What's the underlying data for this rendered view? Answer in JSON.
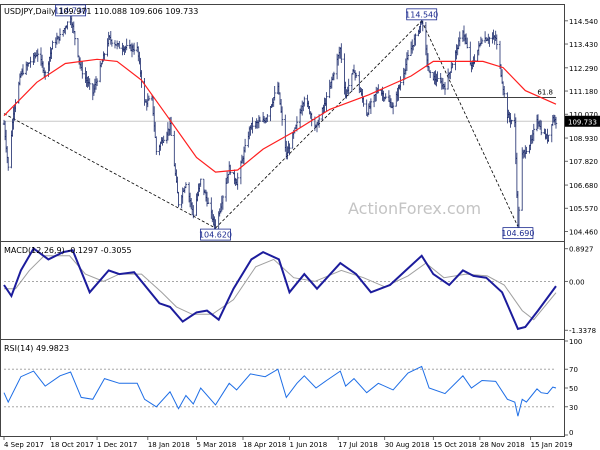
{
  "chart_data": [
    {
      "type": "line",
      "panel": "price",
      "title": "USDJPY,Daily",
      "ohlc_readout": [
        "109.971",
        "110.088",
        "109.606",
        "109.733"
      ],
      "ylim": [
        104.05,
        115.25
      ],
      "y_ticks": [
        "114.540",
        "113.430",
        "112.290",
        "111.180",
        "110.070",
        "108.930",
        "107.820",
        "106.680",
        "105.570",
        "104.460"
      ],
      "last_price_label": "109.733",
      "last_price": 109.733,
      "fib_label": "61.8",
      "fib_level": 110.87,
      "watermark": "ActionForex.com",
      "x_labels": [
        "4 Sep 2017",
        "18 Oct 2017",
        "1 Dec 2017",
        "18 Jan 2018",
        "5 Mar 2018",
        "18 Apr 2018",
        "1 Jun 2018",
        "17 Jul 2018",
        "30 Aug 2018",
        "15 Oct 2018",
        "28 Nov 2018",
        "15 Jan 2019"
      ],
      "price_anchors": [
        [
          "2017-09-04",
          109.6
        ],
        [
          "2017-09-08",
          107.5
        ],
        [
          "2017-09-13",
          110.2
        ],
        [
          "2017-09-20",
          112.0
        ],
        [
          "2017-09-29",
          112.6
        ],
        [
          "2017-10-06",
          113.0
        ],
        [
          "2017-10-13",
          112.0
        ],
        [
          "2017-10-20",
          113.4
        ],
        [
          "2017-10-27",
          113.8
        ],
        [
          "2017-11-06",
          114.73
        ],
        [
          "2017-11-16",
          112.2
        ],
        [
          "2017-11-27",
          111.1
        ],
        [
          "2017-12-06",
          112.6
        ],
        [
          "2017-12-12",
          113.7
        ],
        [
          "2017-12-22",
          113.3
        ],
        [
          "2018-01-08",
          113.2
        ],
        [
          "2018-01-15",
          110.6
        ],
        [
          "2018-01-22",
          110.8
        ],
        [
          "2018-01-26",
          108.3
        ],
        [
          "2018-02-08",
          109.5
        ],
        [
          "2018-02-16",
          105.8
        ],
        [
          "2018-02-23",
          106.8
        ],
        [
          "2018-03-02",
          105.3
        ],
        [
          "2018-03-09",
          106.9
        ],
        [
          "2018-03-23",
          104.62
        ],
        [
          "2018-04-05",
          107.5
        ],
        [
          "2018-04-12",
          106.8
        ],
        [
          "2018-04-25",
          109.5
        ],
        [
          "2018-05-09",
          109.8
        ],
        [
          "2018-05-21",
          111.4
        ],
        [
          "2018-05-29",
          108.1
        ],
        [
          "2018-06-08",
          109.6
        ],
        [
          "2018-06-15",
          110.9
        ],
        [
          "2018-06-26",
          109.4
        ],
        [
          "2018-07-06",
          110.8
        ],
        [
          "2018-07-19",
          113.2
        ],
        [
          "2018-07-24",
          111.0
        ],
        [
          "2018-08-01",
          112.2
        ],
        [
          "2018-08-13",
          110.1
        ],
        [
          "2018-08-24",
          111.3
        ],
        [
          "2018-09-07",
          110.4
        ],
        [
          "2018-09-21",
          112.8
        ],
        [
          "2018-10-04",
          114.54
        ],
        [
          "2018-10-11",
          112.0
        ],
        [
          "2018-10-26",
          111.4
        ],
        [
          "2018-11-12",
          114.1
        ],
        [
          "2018-11-20",
          112.3
        ],
        [
          "2018-11-30",
          113.7
        ],
        [
          "2018-12-13",
          113.7
        ],
        [
          "2018-12-24",
          110.0
        ],
        [
          "2018-12-31",
          109.6
        ],
        [
          "2019-01-03",
          104.69
        ],
        [
          "2019-01-07",
          108.1
        ],
        [
          "2019-01-11",
          108.4
        ],
        [
          "2019-01-16",
          108.8
        ],
        [
          "2019-01-21",
          109.9
        ],
        [
          "2019-01-25",
          109.3
        ],
        [
          "2019-01-31",
          108.9
        ],
        [
          "2019-02-05",
          109.9
        ],
        [
          "2019-02-08",
          109.73
        ]
      ],
      "series": [
        {
          "label": "moving average",
          "color": "#ff1f1f",
          "points": [
            [
              "2017-09-04",
              110.0
            ],
            [
              "2017-10-05",
              111.6
            ],
            [
              "2017-11-01",
              112.5
            ],
            [
              "2017-12-01",
              112.7
            ],
            [
              "2017-12-20",
              112.6
            ],
            [
              "2018-01-12",
              111.7
            ],
            [
              "2018-02-05",
              110.0
            ],
            [
              "2018-03-05",
              108.0
            ],
            [
              "2018-03-23",
              107.3
            ],
            [
              "2018-04-13",
              107.4
            ],
            [
              "2018-05-07",
              108.4
            ],
            [
              "2018-06-04",
              109.2
            ],
            [
              "2018-07-09",
              110.3
            ],
            [
              "2018-08-15",
              111.0
            ],
            [
              "2018-09-24",
              111.9
            ],
            [
              "2018-10-15",
              112.6
            ],
            [
              "2018-11-01",
              112.6
            ],
            [
              "2018-12-01",
              112.6
            ],
            [
              "2018-12-20",
              112.3
            ],
            [
              "2019-01-10",
              111.2
            ],
            [
              "2019-02-08",
              110.55
            ]
          ]
        }
      ],
      "annotations": [
        {
          "text": "114.730",
          "date": "2017-11-06",
          "value": 114.73,
          "position": "above"
        },
        {
          "text": "104.620",
          "date": "2018-03-23",
          "value": 104.62,
          "position": "below"
        },
        {
          "text": "114.540",
          "date": "2018-10-04",
          "value": 114.54,
          "position": "above"
        },
        {
          "text": "104.690",
          "date": "2019-01-03",
          "value": 104.69,
          "position": "below"
        }
      ],
      "trendlines": [
        {
          "style": "dashed",
          "points": [
            [
              "2017-09-04",
              110.1
            ],
            [
              "2018-03-23",
              104.62
            ]
          ]
        },
        {
          "style": "dashed",
          "points": [
            [
              "2018-03-23",
              104.62
            ],
            [
              "2018-10-04",
              114.54
            ]
          ]
        },
        {
          "style": "dashed",
          "points": [
            [
              "2018-10-04",
              114.54
            ],
            [
              "2019-01-03",
              104.69
            ]
          ]
        }
      ]
    },
    {
      "type": "line",
      "panel": "macd",
      "title": "MACD(12,26,9)",
      "readout": [
        "-0.1297",
        "-0.3055"
      ],
      "ylim": [
        -1.55,
        1.05
      ],
      "y_ticks": [
        "0.8927",
        "0.00",
        "-1.3378"
      ],
      "series": [
        {
          "label": "MACD",
          "color": "#1c1c9c",
          "points": [
            [
              "2017-09-04",
              -0.1
            ],
            [
              "2017-09-11",
              -0.4
            ],
            [
              "2017-09-20",
              0.3
            ],
            [
              "2017-10-02",
              0.9
            ],
            [
              "2017-10-16",
              0.6
            ],
            [
              "2017-10-30",
              0.8
            ],
            [
              "2017-11-08",
              0.85
            ],
            [
              "2017-11-24",
              -0.3
            ],
            [
              "2017-12-12",
              0.3
            ],
            [
              "2017-12-22",
              0.2
            ],
            [
              "2018-01-05",
              0.25
            ],
            [
              "2018-01-29",
              -0.6
            ],
            [
              "2018-02-08",
              -0.7
            ],
            [
              "2018-02-20",
              -1.1
            ],
            [
              "2018-03-05",
              -0.85
            ],
            [
              "2018-03-15",
              -0.8
            ],
            [
              "2018-03-26",
              -1.05
            ],
            [
              "2018-04-09",
              -0.2
            ],
            [
              "2018-04-26",
              0.6
            ],
            [
              "2018-05-07",
              0.8
            ],
            [
              "2018-05-22",
              0.6
            ],
            [
              "2018-06-01",
              -0.3
            ],
            [
              "2018-06-15",
              0.2
            ],
            [
              "2018-06-27",
              -0.2
            ],
            [
              "2018-07-19",
              0.5
            ],
            [
              "2018-08-03",
              0.2
            ],
            [
              "2018-08-17",
              -0.3
            ],
            [
              "2018-09-04",
              -0.1
            ],
            [
              "2018-09-19",
              0.3
            ],
            [
              "2018-10-04",
              0.7
            ],
            [
              "2018-10-15",
              0.2
            ],
            [
              "2018-10-30",
              -0.1
            ],
            [
              "2018-11-12",
              0.3
            ],
            [
              "2018-11-22",
              0.15
            ],
            [
              "2018-12-04",
              0.1
            ],
            [
              "2018-12-19",
              -0.3
            ],
            [
              "2019-01-03",
              -1.3
            ],
            [
              "2019-01-10",
              -1.25
            ],
            [
              "2019-01-22",
              -0.8
            ],
            [
              "2019-02-08",
              -0.13
            ]
          ]
        },
        {
          "label": "signal",
          "color": "#a0a0a0",
          "points": [
            [
              "2017-09-04",
              -0.2
            ],
            [
              "2017-09-15",
              -0.2
            ],
            [
              "2017-09-28",
              0.3
            ],
            [
              "2017-10-12",
              0.7
            ],
            [
              "2017-11-05",
              0.7
            ],
            [
              "2017-11-20",
              0.2
            ],
            [
              "2017-12-07",
              0.0
            ],
            [
              "2017-12-22",
              0.2
            ],
            [
              "2018-01-12",
              0.2
            ],
            [
              "2018-01-31",
              -0.3
            ],
            [
              "2018-02-14",
              -0.7
            ],
            [
              "2018-03-01",
              -0.9
            ],
            [
              "2018-03-20",
              -0.9
            ],
            [
              "2018-04-09",
              -0.5
            ],
            [
              "2018-04-30",
              0.4
            ],
            [
              "2018-05-17",
              0.6
            ],
            [
              "2018-06-05",
              0.1
            ],
            [
              "2018-06-25",
              0.0
            ],
            [
              "2018-07-20",
              0.3
            ],
            [
              "2018-08-10",
              0.1
            ],
            [
              "2018-08-30",
              -0.15
            ],
            [
              "2018-09-21",
              0.15
            ],
            [
              "2018-10-08",
              0.5
            ],
            [
              "2018-10-25",
              0.1
            ],
            [
              "2018-11-15",
              0.2
            ],
            [
              "2018-12-05",
              0.15
            ],
            [
              "2018-12-21",
              -0.1
            ],
            [
              "2019-01-07",
              -0.8
            ],
            [
              "2019-01-18",
              -1.05
            ],
            [
              "2019-02-08",
              -0.31
            ]
          ]
        }
      ]
    },
    {
      "type": "line",
      "panel": "rsi",
      "title": "RSI(14)",
      "readout": "49.9823",
      "ylim": [
        0,
        100
      ],
      "y_ticks": [
        "100",
        "70",
        "50",
        "30",
        "0"
      ],
      "series": [
        {
          "label": "RSI",
          "color": "#1e6ee6",
          "points": [
            [
              "2017-09-04",
              45
            ],
            [
              "2017-09-08",
              35
            ],
            [
              "2017-09-20",
              62
            ],
            [
              "2017-10-02",
              68
            ],
            [
              "2017-10-13",
              52
            ],
            [
              "2017-10-27",
              63
            ],
            [
              "2017-11-06",
              67
            ],
            [
              "2017-11-16",
              40
            ],
            [
              "2017-11-27",
              38
            ],
            [
              "2017-12-08",
              60
            ],
            [
              "2017-12-22",
              55
            ],
            [
              "2018-01-08",
              55
            ],
            [
              "2018-01-15",
              38
            ],
            [
              "2018-01-26",
              30
            ],
            [
              "2018-02-08",
              46
            ],
            [
              "2018-02-16",
              28
            ],
            [
              "2018-02-23",
              42
            ],
            [
              "2018-03-02",
              33
            ],
            [
              "2018-03-09",
              50
            ],
            [
              "2018-03-23",
              32
            ],
            [
              "2018-04-05",
              55
            ],
            [
              "2018-04-12",
              48
            ],
            [
              "2018-04-25",
              65
            ],
            [
              "2018-05-09",
              62
            ],
            [
              "2018-05-21",
              70
            ],
            [
              "2018-05-29",
              40
            ],
            [
              "2018-06-08",
              55
            ],
            [
              "2018-06-15",
              63
            ],
            [
              "2018-06-26",
              50
            ],
            [
              "2018-07-06",
              58
            ],
            [
              "2018-07-19",
              68
            ],
            [
              "2018-07-24",
              52
            ],
            [
              "2018-08-01",
              60
            ],
            [
              "2018-08-13",
              45
            ],
            [
              "2018-08-24",
              55
            ],
            [
              "2018-09-07",
              48
            ],
            [
              "2018-09-21",
              66
            ],
            [
              "2018-10-04",
              73
            ],
            [
              "2018-10-11",
              50
            ],
            [
              "2018-10-26",
              44
            ],
            [
              "2018-11-12",
              63
            ],
            [
              "2018-11-20",
              50
            ],
            [
              "2018-11-30",
              58
            ],
            [
              "2018-12-13",
              57
            ],
            [
              "2018-12-24",
              38
            ],
            [
              "2018-12-31",
              35
            ],
            [
              "2019-01-03",
              20
            ],
            [
              "2019-01-07",
              38
            ],
            [
              "2019-01-11",
              35
            ],
            [
              "2019-01-16",
              42
            ],
            [
              "2019-01-21",
              49
            ],
            [
              "2019-01-25",
              45
            ],
            [
              "2019-01-31",
              44
            ],
            [
              "2019-02-05",
              51
            ],
            [
              "2019-02-08",
              49.98
            ]
          ]
        }
      ]
    }
  ]
}
